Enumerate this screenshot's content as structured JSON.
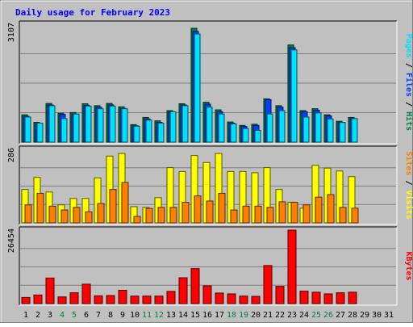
{
  "chart_data": {
    "type": "bar",
    "title": "Daily usage for February 2023",
    "categories": [
      "1",
      "2",
      "3",
      "4",
      "5",
      "6",
      "7",
      "8",
      "9",
      "10",
      "11",
      "12",
      "13",
      "14",
      "15",
      "16",
      "17",
      "18",
      "19",
      "20",
      "21",
      "22",
      "23",
      "24",
      "25",
      "26",
      "27",
      "28",
      "29",
      "30",
      "31"
    ],
    "weekend_days": [
      "4",
      "5",
      "11",
      "12",
      "18",
      "19",
      "25",
      "26"
    ],
    "panels": [
      {
        "key": "hits",
        "ymax_label": "3107",
        "ymax": 3107,
        "right_label_parts": [
          "Pages",
          "Files",
          "Hits"
        ],
        "series": [
          {
            "name": "Hits",
            "color": "#008040",
            "values": [
              720,
              520,
              1020,
              760,
              780,
              1010,
              960,
              1020,
              930,
              460,
              650,
              560,
              830,
              1010,
              3000,
              1050,
              850,
              530,
              440,
              470,
              1140,
              960,
              2560,
              830,
              880,
              720,
              550,
              650,
              0,
              0,
              0
            ]
          },
          {
            "name": "Files",
            "color": "#0040ff",
            "values": [
              680,
              480,
              980,
              730,
              740,
              970,
              920,
              980,
              890,
              430,
              610,
              520,
              800,
              980,
              2920,
              1000,
              800,
              500,
              410,
              440,
              1120,
              920,
              2490,
              800,
              840,
              690,
              520,
              620,
              0,
              0,
              0
            ]
          },
          {
            "name": "Pages",
            "color": "#00e0ff",
            "values": [
              660,
              500,
              960,
              620,
              740,
              950,
              880,
              950,
              880,
              420,
              580,
              500,
              800,
              960,
              2850,
              920,
              740,
              480,
              360,
              310,
              740,
              830,
              2430,
              660,
              770,
              610,
              520,
              620,
              0,
              0,
              0
            ]
          }
        ]
      },
      {
        "key": "visits",
        "ymax_label": "286",
        "ymax": 286,
        "right_label_parts": [
          "Sites",
          "Visits"
        ],
        "series": [
          {
            "name": "Visits",
            "color": "#ffff00",
            "values": [
              130,
              177,
              120,
              70,
              95,
              95,
              175,
              260,
              270,
              63,
              60,
              98,
              215,
              200,
              262,
              235,
              270,
              200,
              200,
              195,
              215,
              130,
              80,
              57,
              224,
              213,
              202,
              180,
              0,
              0,
              0
            ]
          },
          {
            "name": "Sites",
            "color": "#ff8000",
            "values": [
              70,
              115,
              65,
              50,
              60,
              43,
              75,
              130,
              157,
              25,
              56,
              60,
              60,
              80,
              105,
              85,
              115,
              50,
              65,
              65,
              60,
              82,
              80,
              70,
              100,
              110,
              60,
              57,
              0,
              0,
              0
            ]
          }
        ]
      },
      {
        "key": "kbytes",
        "ymax_label": "26454",
        "ymax": 26454,
        "right_label_parts": [
          "KBytes"
        ],
        "series": [
          {
            "name": "KBytes",
            "color": "#ff0000",
            "values": [
              2200,
              3100,
              9200,
              2400,
              3900,
              7000,
              2800,
              2900,
              4800,
              2700,
              2700,
              2700,
              4400,
              9300,
              12600,
              6400,
              3800,
              3500,
              2700,
              2600,
              13700,
              6200,
              26454,
              4500,
              4100,
              3500,
              3900,
              4100,
              0,
              0,
              0
            ]
          }
        ]
      }
    ]
  }
}
